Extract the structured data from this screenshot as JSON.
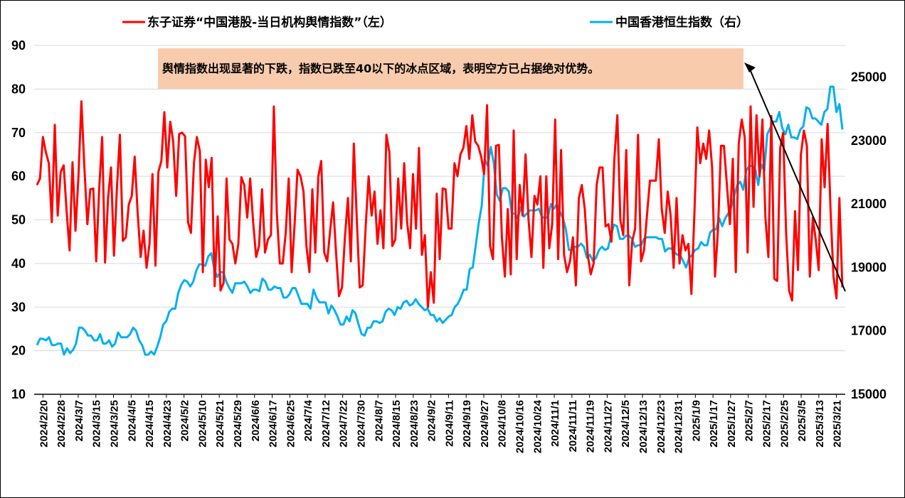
{
  "chart_data": {
    "type": "line",
    "title": "",
    "legend_position": "top",
    "grid": "horizontal",
    "x_ticks": [
      "2024/2/20",
      "2024/2/28",
      "2024/3/7",
      "2024/3/15",
      "2024/3/25",
      "2024/4/5",
      "2024/4/15",
      "2024/4/23",
      "2024/5/2",
      "2024/5/10",
      "2024/5/21",
      "2024/5/29",
      "2024/6/6",
      "2024/6/17",
      "2024/6/25",
      "2024/7/4",
      "2024/7/12",
      "2024/7/22",
      "2024/7/30",
      "2024/8/7",
      "2024/8/15",
      "2024/8/23",
      "2024/9/2",
      "2024/9/11",
      "2024/9/19",
      "2024/9/27",
      "2024/10/8",
      "2024/10/16",
      "2024/10/24",
      "2024/11/1",
      "2024/11/11",
      "2024/11/19",
      "2024/11/27",
      "2024/12/5",
      "2024/12/13",
      "2024/12/23",
      "2024/12/31",
      "2025/1/9",
      "2025/1/17",
      "2025/1/27",
      "2025/2/7",
      "2025/2/17",
      "2025/2/25",
      "2025/3/5",
      "2025/3/13",
      "2025/3/21"
    ],
    "y_left": {
      "min": 10,
      "max": 90,
      "ticks": [
        10,
        20,
        30,
        40,
        50,
        60,
        70,
        80,
        90
      ]
    },
    "y_right": {
      "min": 15000,
      "max": 26000,
      "ticks": [
        15000,
        17000,
        19000,
        21000,
        23000,
        25000
      ]
    },
    "series": [
      {
        "name": "东子证券“中国港股-当日机构舆情指数”（左）",
        "color": "#ff0000",
        "axis": "left",
        "values": [
          58,
          59.5,
          69,
          65.5,
          63,
          49.5,
          71.8,
          51,
          61,
          62.5,
          52,
          43,
          63.2,
          47.5,
          60,
          77.2,
          62,
          49,
          57,
          57.2,
          40.5,
          57,
          69,
          40.2,
          55,
          62,
          41.8,
          57.5,
          69.5,
          45.2,
          46,
          53.5,
          55.5,
          64.5,
          51.5,
          41.5,
          47.5,
          39,
          44.5,
          60.5,
          39.5,
          61,
          63.5,
          74.7,
          62,
          72.5,
          68,
          55.5,
          69.7,
          70,
          69.2,
          49.5,
          47,
          63,
          69,
          65.8,
          38,
          63.8,
          57.5,
          64.2,
          34.8,
          50.8,
          33.8,
          35.5,
          59.5,
          45.5,
          44.5,
          40,
          44.5,
          59.8,
          58,
          50.5,
          59.5,
          49.5,
          41.5,
          44,
          57,
          42.5,
          45.5,
          46.5,
          76,
          51.5,
          40,
          40,
          47,
          59.5,
          38,
          49,
          61.5,
          60,
          56.5,
          44,
          38,
          57,
          42.5,
          60,
          63.5,
          42.5,
          40.5,
          47.5,
          54,
          42.5,
          32.5,
          34.5,
          46,
          55,
          40.5,
          67.5,
          50,
          34.5,
          35,
          48.5,
          60,
          51,
          56.5,
          44.5,
          52.2,
          43.5,
          69.5,
          65.5,
          44,
          45.5,
          59.5,
          48,
          63,
          49.5,
          43.5,
          60.5,
          48,
          66.5,
          42,
          46.5,
          30,
          38,
          31,
          56,
          41,
          57.2,
          57,
          48,
          48,
          63,
          60,
          65,
          66.5,
          71.5,
          64,
          74,
          68,
          67,
          64.5,
          60.5,
          76.3,
          44,
          41,
          67,
          67.2,
          46,
          37,
          52.5,
          37.5,
          70.5,
          41,
          58,
          51,
          65,
          50,
          41.5,
          55.5,
          53.5,
          60,
          39,
          60,
          43.5,
          49,
          73,
          41,
          66,
          42,
          38,
          40.5,
          46,
          35,
          55,
          58,
          52.5,
          42,
          37.5,
          40,
          58,
          62,
          62,
          48.5,
          49,
          45,
          64,
          74,
          50,
          46.5,
          66,
          35,
          45,
          48,
          69.5,
          40.5,
          43,
          51,
          59,
          59,
          59,
          68.5,
          52.5,
          47,
          56.5,
          51,
          39,
          55,
          40,
          46.5,
          43,
          44.5,
          33,
          51,
          71.2,
          63,
          67.5,
          64,
          70.5,
          62,
          37,
          48,
          67,
          67,
          58,
          49,
          64,
          38,
          67.5,
          73,
          69,
          42.5,
          76,
          53,
          74,
          60,
          73,
          50.5,
          41.5,
          73.8,
          36.5,
          36,
          66.5,
          70,
          47,
          33.8,
          31.5,
          52,
          38.5,
          65,
          70.5,
          67,
          37,
          50.5,
          45.5,
          38.5,
          68.5,
          57.5,
          72,
          52,
          37,
          32,
          55,
          34.5
        ]
      },
      {
        "name": "中国香港恒生指数（右）",
        "color": "#00b0f0",
        "axis": "right",
        "values": [
          16550,
          16750,
          16750,
          16700,
          16800,
          16550,
          16550,
          16600,
          16600,
          16250,
          16450,
          16300,
          16400,
          16600,
          17100,
          17100,
          17000,
          16850,
          16850,
          16700,
          16700,
          16900,
          16600,
          16600,
          16700,
          16500,
          16600,
          16950,
          16800,
          16800,
          16800,
          16900,
          17100,
          17000,
          16700,
          16550,
          16250,
          16250,
          16350,
          16250,
          16500,
          16800,
          17200,
          17300,
          17600,
          17700,
          17700,
          18200,
          18450,
          18600,
          18550,
          18400,
          18550,
          18900,
          19100,
          19100,
          19050,
          19350,
          19450,
          18950,
          18700,
          18850,
          18850,
          18550,
          18350,
          18200,
          18500,
          18500,
          18500,
          18550,
          18400,
          18200,
          18300,
          18300,
          18250,
          18650,
          18550,
          18300,
          18300,
          18400,
          18350,
          18350,
          18050,
          18050,
          18150,
          18350,
          18350,
          18100,
          17850,
          17850,
          17850,
          17700,
          18300,
          18050,
          17900,
          17900,
          17900,
          17550,
          17800,
          17650,
          17450,
          17200,
          17200,
          17450,
          17300,
          17650,
          17550,
          17200,
          16900,
          16850,
          17100,
          17100,
          17300,
          17300,
          17250,
          17300,
          17600,
          17700,
          17650,
          17500,
          17750,
          17700,
          17900,
          17950,
          17800,
          17850,
          18000,
          17850,
          17750,
          17650,
          17700,
          17500,
          17500,
          17300,
          17400,
          17250,
          17350,
          17450,
          17500,
          17750,
          17850,
          18050,
          18300,
          18300,
          18950,
          19000,
          19700,
          20400,
          20950,
          22400,
          22200,
          22800,
          22300,
          21300,
          21100,
          21500,
          21500,
          21400,
          20700,
          20700,
          20550,
          20900,
          20600,
          20700,
          20800,
          20800,
          20800,
          20850,
          20600,
          20550,
          20600,
          21000,
          20850,
          21000,
          20750,
          20550,
          20200,
          19550,
          19550,
          19650,
          19650,
          19750,
          19650,
          19300,
          19400,
          19200,
          19300,
          19550,
          19650,
          19550,
          19600,
          20000,
          20350,
          20300,
          19900,
          19900,
          20000,
          20000,
          19900,
          19650,
          19700,
          19700,
          19900,
          19950,
          19950,
          19950,
          19950,
          19900,
          19900,
          19500,
          19600,
          19600,
          19500,
          19400,
          19400,
          19200,
          19000,
          19300,
          19400,
          19550,
          19600,
          19800,
          19700,
          19700,
          20100,
          20200,
          20200,
          20550,
          20300,
          20550,
          20700,
          20900,
          21250,
          21600,
          21700,
          21450,
          22050,
          22200,
          22200,
          22100,
          21600,
          22250,
          22050,
          23200,
          23400,
          23600,
          23600,
          23900,
          23400,
          23200,
          23500,
          23100,
          23100,
          23050,
          23350,
          23450,
          24050,
          24000,
          23700,
          23700,
          23600,
          23500,
          23900,
          24000,
          24700,
          24700,
          23900,
          24150,
          23350
        ]
      }
    ],
    "annotation": {
      "text": "舆情指数出现显著的下跌，指数已跌至40以下的冰点区域，表明空方已占据绝对优势。",
      "background": "#f8cbad"
    }
  }
}
